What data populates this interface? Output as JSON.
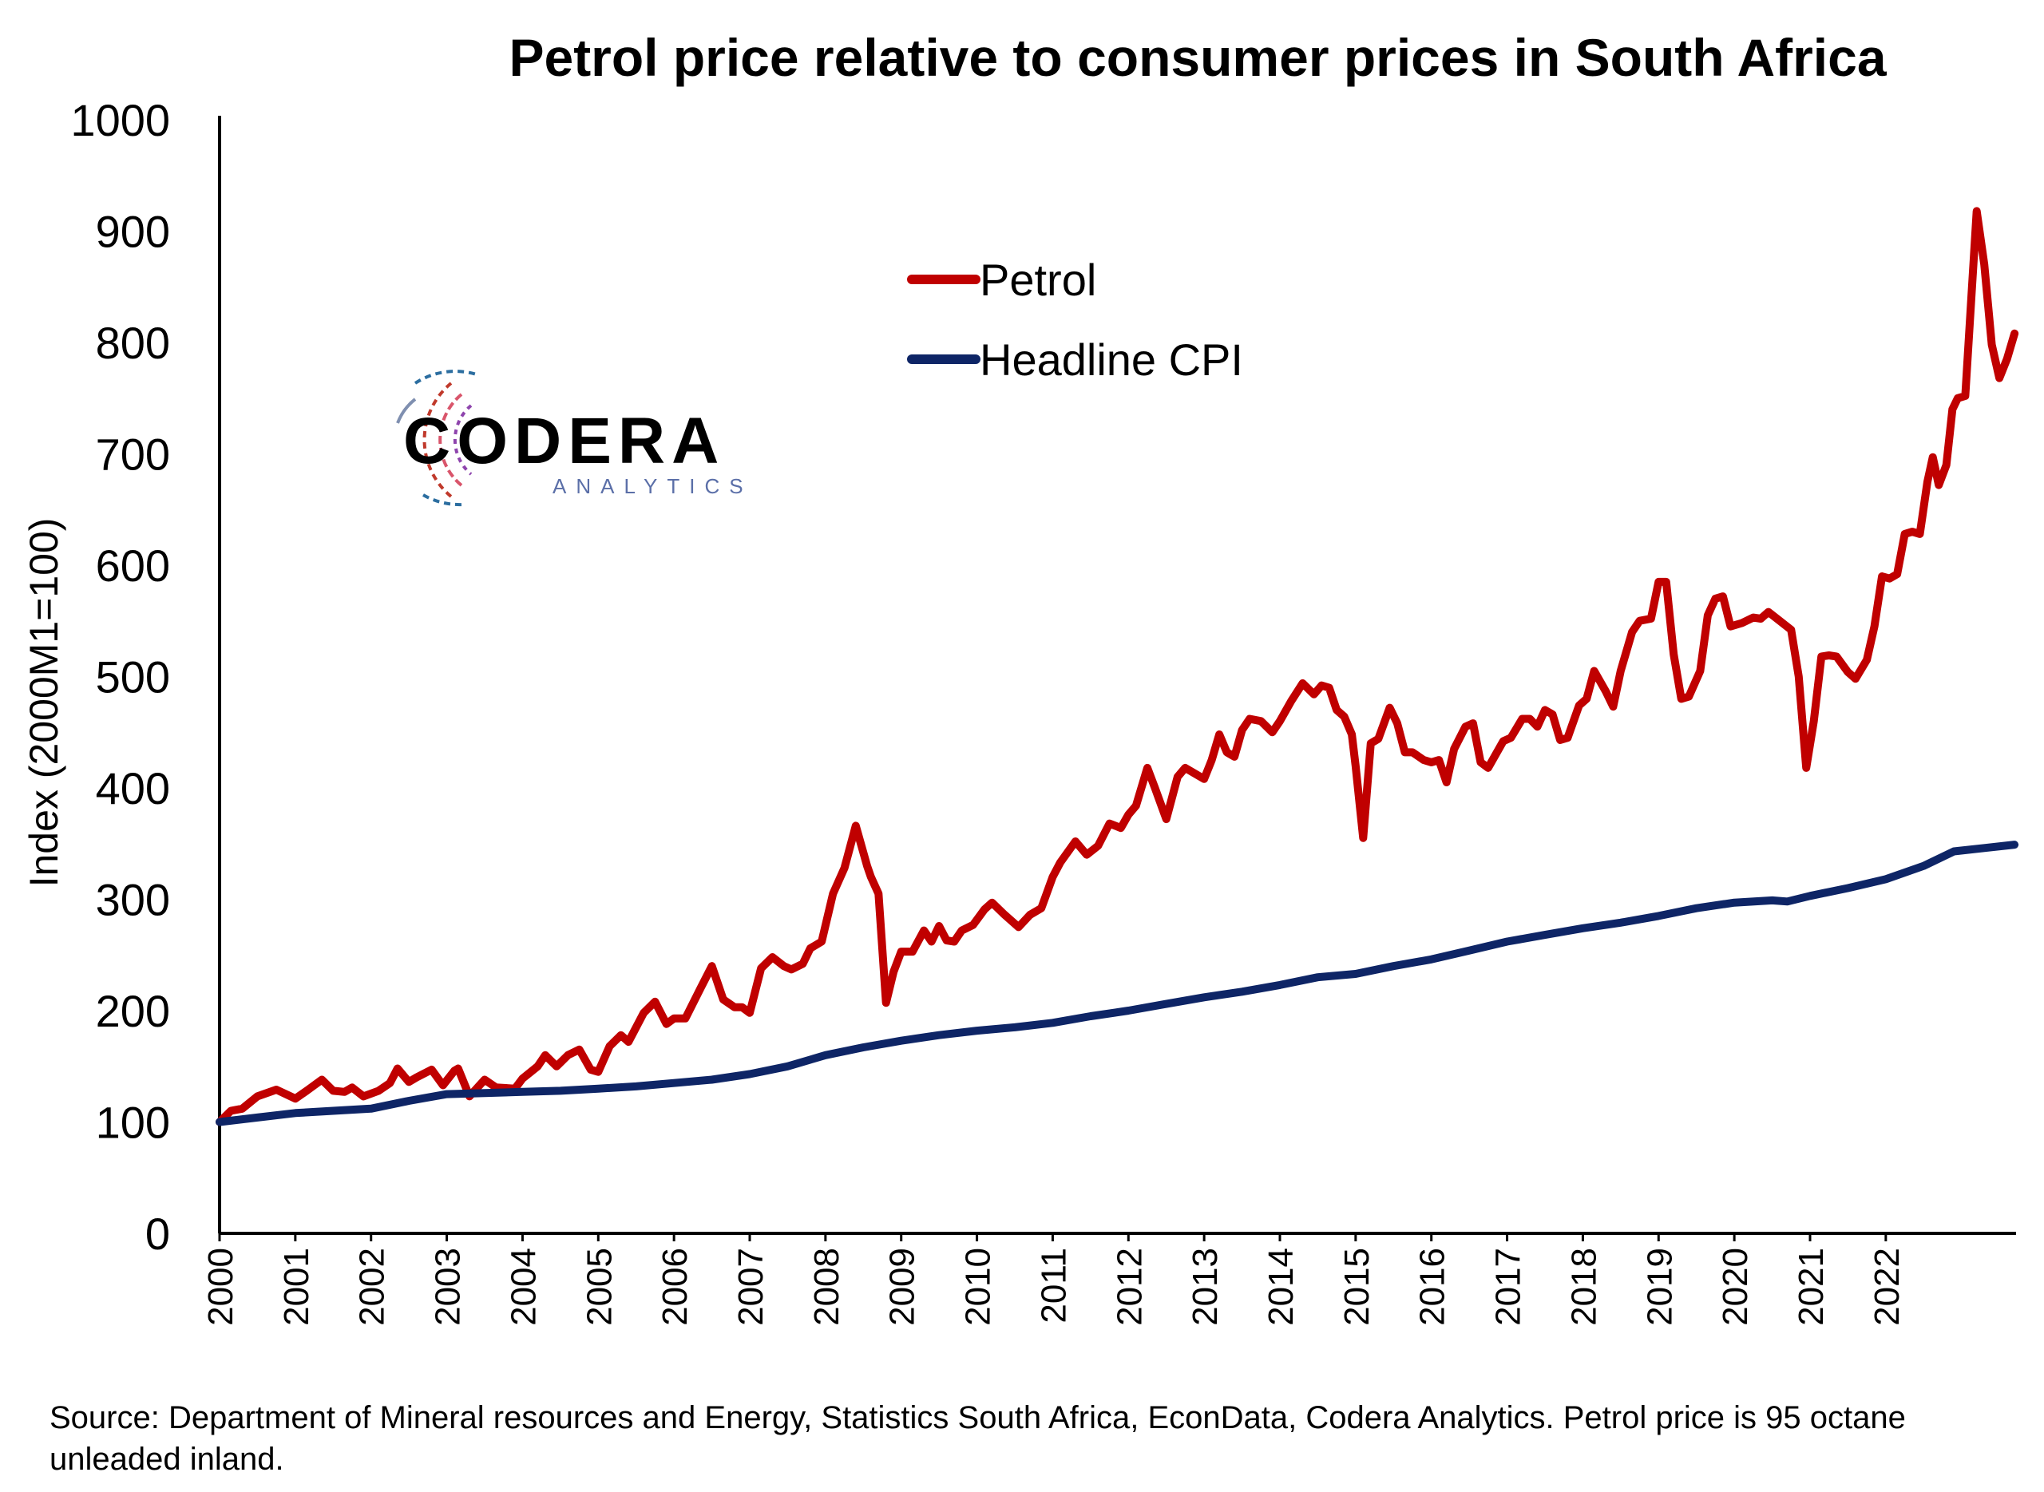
{
  "chart_data": {
    "type": "line",
    "title": "Petrol price relative to consumer prices in South Africa",
    "xlabel": "",
    "ylabel": "Index (2000M1=100)",
    "ylim": [
      0,
      1000
    ],
    "yticks": [
      0,
      100,
      200,
      300,
      400,
      500,
      600,
      700,
      800,
      900,
      1000
    ],
    "xlim": [
      2000,
      2022.95
    ],
    "xticks": [
      "2000",
      "2001",
      "2002",
      "2003",
      "2004",
      "2005",
      "2006",
      "2007",
      "2008",
      "2009",
      "2010",
      "2011",
      "2012",
      "2013",
      "2014",
      "2015",
      "2016",
      "2017",
      "2018",
      "2019",
      "2020",
      "2021",
      "2022"
    ],
    "grid": false,
    "legend_position": "upper-center",
    "series": [
      {
        "name": "Petrol",
        "color": "#c00000",
        "points": [
          [
            2000.0,
            100
          ],
          [
            2000.15,
            110
          ],
          [
            2000.3,
            112
          ],
          [
            2000.5,
            123
          ],
          [
            2000.75,
            129
          ],
          [
            2001.0,
            121
          ],
          [
            2001.15,
            128
          ],
          [
            2001.35,
            138
          ],
          [
            2001.5,
            128
          ],
          [
            2001.65,
            127
          ],
          [
            2001.75,
            131
          ],
          [
            2001.9,
            123
          ],
          [
            2002.1,
            128
          ],
          [
            2002.25,
            135
          ],
          [
            2002.35,
            148
          ],
          [
            2002.5,
            136
          ],
          [
            2002.6,
            140
          ],
          [
            2002.8,
            147
          ],
          [
            2002.95,
            133
          ],
          [
            2003.1,
            146
          ],
          [
            2003.15,
            148
          ],
          [
            2003.3,
            123
          ],
          [
            2003.5,
            138
          ],
          [
            2003.65,
            131
          ],
          [
            2003.9,
            130
          ],
          [
            2004.0,
            139
          ],
          [
            2004.2,
            150
          ],
          [
            2004.3,
            160
          ],
          [
            2004.45,
            150
          ],
          [
            2004.6,
            160
          ],
          [
            2004.75,
            165
          ],
          [
            2004.9,
            147
          ],
          [
            2005.0,
            145
          ],
          [
            2005.15,
            168
          ],
          [
            2005.3,
            178
          ],
          [
            2005.4,
            172
          ],
          [
            2005.6,
            198
          ],
          [
            2005.75,
            208
          ],
          [
            2005.9,
            188
          ],
          [
            2006.0,
            193
          ],
          [
            2006.15,
            193
          ],
          [
            2006.35,
            220
          ],
          [
            2006.5,
            240
          ],
          [
            2006.65,
            210
          ],
          [
            2006.8,
            203
          ],
          [
            2006.9,
            203
          ],
          [
            2007.0,
            198
          ],
          [
            2007.15,
            238
          ],
          [
            2007.3,
            248
          ],
          [
            2007.45,
            240
          ],
          [
            2007.55,
            237
          ],
          [
            2007.7,
            242
          ],
          [
            2007.8,
            256
          ],
          [
            2007.95,
            262
          ],
          [
            2008.1,
            305
          ],
          [
            2008.25,
            328
          ],
          [
            2008.4,
            366
          ],
          [
            2008.55,
            330
          ],
          [
            2008.6,
            320
          ],
          [
            2008.7,
            305
          ],
          [
            2008.8,
            207
          ],
          [
            2008.9,
            235
          ],
          [
            2009.0,
            253
          ],
          [
            2009.15,
            253
          ],
          [
            2009.3,
            272
          ],
          [
            2009.4,
            262
          ],
          [
            2009.5,
            276
          ],
          [
            2009.6,
            263
          ],
          [
            2009.7,
            262
          ],
          [
            2009.8,
            272
          ],
          [
            2009.95,
            277
          ],
          [
            2010.1,
            291
          ],
          [
            2010.2,
            297
          ],
          [
            2010.35,
            287
          ],
          [
            2010.55,
            275
          ],
          [
            2010.7,
            286
          ],
          [
            2010.85,
            292
          ],
          [
            2011.0,
            320
          ],
          [
            2011.1,
            333
          ],
          [
            2011.3,
            352
          ],
          [
            2011.45,
            340
          ],
          [
            2011.6,
            348
          ],
          [
            2011.75,
            368
          ],
          [
            2011.9,
            364
          ],
          [
            2012.0,
            376
          ],
          [
            2012.1,
            384
          ],
          [
            2012.25,
            418
          ],
          [
            2012.35,
            400
          ],
          [
            2012.5,
            372
          ],
          [
            2012.65,
            410
          ],
          [
            2012.75,
            418
          ],
          [
            2012.9,
            412
          ],
          [
            2013.0,
            408
          ],
          [
            2013.1,
            425
          ],
          [
            2013.2,
            448
          ],
          [
            2013.3,
            432
          ],
          [
            2013.4,
            428
          ],
          [
            2013.5,
            452
          ],
          [
            2013.6,
            462
          ],
          [
            2013.75,
            460
          ],
          [
            2013.9,
            450
          ],
          [
            2014.0,
            460
          ],
          [
            2014.15,
            478
          ],
          [
            2014.3,
            494
          ],
          [
            2014.45,
            484
          ],
          [
            2014.55,
            492
          ],
          [
            2014.65,
            490
          ],
          [
            2014.75,
            470
          ],
          [
            2014.85,
            464
          ],
          [
            2014.95,
            448
          ],
          [
            2015.0,
            420
          ],
          [
            2015.1,
            355
          ],
          [
            2015.2,
            440
          ],
          [
            2015.3,
            444
          ],
          [
            2015.45,
            472
          ],
          [
            2015.55,
            458
          ],
          [
            2015.65,
            432
          ],
          [
            2015.75,
            432
          ],
          [
            2015.9,
            425
          ],
          [
            2016.0,
            423
          ],
          [
            2016.1,
            425
          ],
          [
            2016.2,
            405
          ],
          [
            2016.3,
            435
          ],
          [
            2016.45,
            455
          ],
          [
            2016.55,
            458
          ],
          [
            2016.65,
            423
          ],
          [
            2016.75,
            418
          ],
          [
            2016.95,
            442
          ],
          [
            2017.05,
            445
          ],
          [
            2017.2,
            462
          ],
          [
            2017.3,
            462
          ],
          [
            2017.4,
            455
          ],
          [
            2017.5,
            470
          ],
          [
            2017.6,
            466
          ],
          [
            2017.7,
            443
          ],
          [
            2017.8,
            445
          ],
          [
            2017.95,
            474
          ],
          [
            2018.05,
            480
          ],
          [
            2018.15,
            505
          ],
          [
            2018.3,
            487
          ],
          [
            2018.4,
            473
          ],
          [
            2018.5,
            505
          ],
          [
            2018.65,
            540
          ],
          [
            2018.75,
            550
          ],
          [
            2018.9,
            552
          ],
          [
            2019.0,
            585
          ],
          [
            2019.1,
            585
          ],
          [
            2019.2,
            520
          ],
          [
            2019.3,
            480
          ],
          [
            2019.4,
            482
          ],
          [
            2019.55,
            505
          ],
          [
            2019.65,
            555
          ],
          [
            2019.75,
            570
          ],
          [
            2019.85,
            572
          ],
          [
            2019.95,
            545
          ],
          [
            2020.1,
            548
          ],
          [
            2020.25,
            553
          ],
          [
            2020.35,
            552
          ],
          [
            2020.45,
            558
          ],
          [
            2020.6,
            550
          ],
          [
            2020.75,
            542
          ],
          [
            2020.85,
            500
          ],
          [
            2020.95,
            418
          ],
          [
            2021.05,
            460
          ],
          [
            2021.15,
            518
          ],
          [
            2021.25,
            519
          ],
          [
            2021.35,
            518
          ],
          [
            2021.5,
            504
          ],
          [
            2021.6,
            498
          ],
          [
            2021.75,
            515
          ],
          [
            2021.85,
            545
          ],
          [
            2021.95,
            590
          ],
          [
            2022.05,
            588
          ],
          [
            2022.15,
            592
          ],
          [
            2022.25,
            628
          ],
          [
            2022.35,
            630
          ],
          [
            2022.45,
            628
          ],
          [
            2022.55,
            675
          ],
          [
            2022.62,
            697
          ],
          [
            2022.7,
            672
          ],
          [
            2022.8,
            690
          ],
          [
            2022.88,
            740
          ],
          [
            2022.95,
            750
          ],
          [
            2023.05,
            752
          ],
          [
            2023.2,
            918
          ],
          [
            2023.3,
            870
          ],
          [
            2023.4,
            798
          ],
          [
            2023.5,
            768
          ],
          [
            2023.6,
            785
          ],
          [
            2023.7,
            808
          ]
        ]
      },
      {
        "name": "Headline CPI",
        "color": "#0e2566",
        "points": [
          [
            2000.0,
            100
          ],
          [
            2000.5,
            104
          ],
          [
            2001.0,
            108
          ],
          [
            2001.5,
            110
          ],
          [
            2002.0,
            112
          ],
          [
            2002.5,
            119
          ],
          [
            2003.0,
            125
          ],
          [
            2003.5,
            126
          ],
          [
            2004.0,
            127
          ],
          [
            2004.5,
            128
          ],
          [
            2005.0,
            130
          ],
          [
            2005.5,
            132
          ],
          [
            2006.0,
            135
          ],
          [
            2006.5,
            138
          ],
          [
            2007.0,
            143
          ],
          [
            2007.5,
            150
          ],
          [
            2008.0,
            160
          ],
          [
            2008.5,
            167
          ],
          [
            2009.0,
            173
          ],
          [
            2009.5,
            178
          ],
          [
            2010.0,
            182
          ],
          [
            2010.5,
            185
          ],
          [
            2011.0,
            189
          ],
          [
            2011.5,
            195
          ],
          [
            2012.0,
            200
          ],
          [
            2012.5,
            206
          ],
          [
            2013.0,
            212
          ],
          [
            2013.5,
            217
          ],
          [
            2014.0,
            223
          ],
          [
            2014.5,
            230
          ],
          [
            2015.0,
            233
          ],
          [
            2015.5,
            240
          ],
          [
            2016.0,
            246
          ],
          [
            2016.5,
            254
          ],
          [
            2017.0,
            262
          ],
          [
            2017.5,
            268
          ],
          [
            2018.0,
            274
          ],
          [
            2018.5,
            279
          ],
          [
            2019.0,
            285
          ],
          [
            2019.5,
            292
          ],
          [
            2020.0,
            297
          ],
          [
            2020.5,
            299
          ],
          [
            2020.7,
            298
          ],
          [
            2021.0,
            303
          ],
          [
            2021.5,
            310
          ],
          [
            2022.0,
            318
          ],
          [
            2022.5,
            330
          ],
          [
            2022.9,
            343
          ],
          [
            2023.3,
            346
          ],
          [
            2023.7,
            349
          ]
        ]
      }
    ],
    "source_note": "Source: Department of Mineral resources and Energy, Statistics South Africa, EconData, Codera Analytics. Petrol price is 95 octane unleaded inland."
  },
  "logo": {
    "name": "CODERA",
    "tagline": "ANALYTICS",
    "colors": {
      "text": "#000000",
      "tagline": "#5b6fa8",
      "ring_red": "#c0392b",
      "ring_blue": "#2c6ea0"
    }
  }
}
